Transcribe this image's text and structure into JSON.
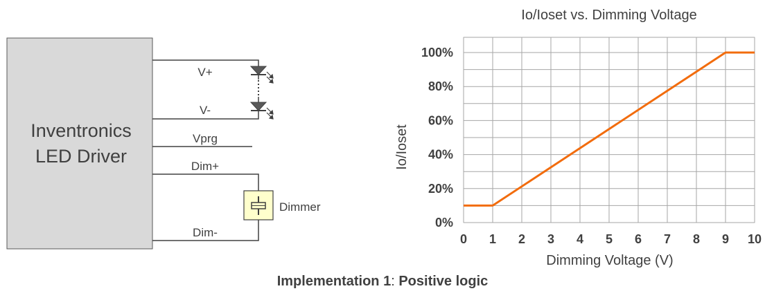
{
  "diagram": {
    "driver_box": {
      "line1": "Inventronics",
      "line2": "LED Driver"
    },
    "wires": {
      "v_plus": "V+",
      "v_minus": "V-",
      "vprg": "Vprg",
      "dim_plus": "Dim+",
      "dim_minus": "Dim-"
    },
    "dimmer_label": "Dimmer",
    "colors": {
      "driver_fill": "#d9d9d9",
      "dimmer_fill": "#ffffcc",
      "wire": "#404040"
    }
  },
  "caption": {
    "bold_part": "Implementation 1",
    "separator": ": ",
    "rest": "Positive logic"
  },
  "chart_data": {
    "type": "line",
    "title": "Io/Ioset vs. Dimming Voltage",
    "xlabel": "Dimming Voltage (V)",
    "ylabel": "Io/Ioset",
    "xlim": [
      0,
      10
    ],
    "ylim": [
      0,
      100
    ],
    "x_ticks": [
      "0",
      "1",
      "2",
      "3",
      "4",
      "5",
      "6",
      "7",
      "8",
      "9",
      "10"
    ],
    "y_ticks": [
      "0%",
      "20%",
      "40%",
      "60%",
      "80%",
      "100%"
    ],
    "grid": true,
    "series": [
      {
        "color": "#f26c0d",
        "x": [
          0,
          1,
          9,
          10
        ],
        "y": [
          10,
          10,
          100,
          100
        ]
      }
    ]
  }
}
